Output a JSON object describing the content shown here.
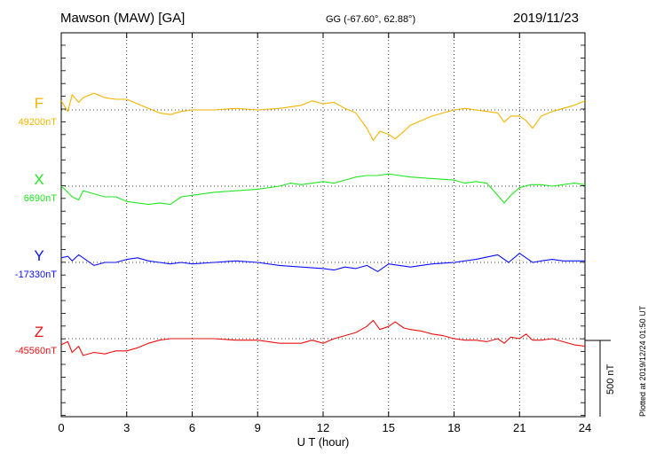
{
  "header": {
    "station": "Mawson (MAW)  [GA]",
    "coords": "GG (-67.60°,  62.88°)",
    "date": "2019/11/23"
  },
  "plotted_note": "Plotted at 2019/12/24 01:50 UT",
  "scale_bar_label": "500 nT",
  "chart_data": {
    "type": "line",
    "xlabel": "U T (hour)",
    "xlim": [
      0,
      24
    ],
    "xticks": [
      0,
      3,
      6,
      9,
      12,
      15,
      18,
      21,
      24
    ],
    "grid": true,
    "scale_bar_nT": 500,
    "series": [
      {
        "name": "F",
        "baseline_label": "49200nT",
        "baseline_nT": 49200,
        "color": "#f5b400",
        "points": [
          [
            0,
            49260
          ],
          [
            0.3,
            49190
          ],
          [
            0.5,
            49300
          ],
          [
            0.8,
            49250
          ],
          [
            1,
            49280
          ],
          [
            1.5,
            49310
          ],
          [
            2,
            49280
          ],
          [
            2.5,
            49270
          ],
          [
            3,
            49270
          ],
          [
            3.5,
            49240
          ],
          [
            4,
            49210
          ],
          [
            4.5,
            49180
          ],
          [
            5,
            49170
          ],
          [
            5.5,
            49190
          ],
          [
            6,
            49200
          ],
          [
            7,
            49200
          ],
          [
            8,
            49210
          ],
          [
            9,
            49200
          ],
          [
            10,
            49210
          ],
          [
            11,
            49230
          ],
          [
            11.5,
            49260
          ],
          [
            12,
            49240
          ],
          [
            12.5,
            49250
          ],
          [
            13,
            49210
          ],
          [
            13.5,
            49180
          ],
          [
            14,
            49080
          ],
          [
            14.3,
            49000
          ],
          [
            14.6,
            49060
          ],
          [
            15,
            49040
          ],
          [
            15.3,
            49010
          ],
          [
            15.7,
            49060
          ],
          [
            16,
            49100
          ],
          [
            17,
            49160
          ],
          [
            17.5,
            49180
          ],
          [
            18,
            49200
          ],
          [
            18.5,
            49210
          ],
          [
            19,
            49200
          ],
          [
            19.5,
            49190
          ],
          [
            20,
            49180
          ],
          [
            20.3,
            49120
          ],
          [
            20.6,
            49160
          ],
          [
            21,
            49160
          ],
          [
            21.3,
            49130
          ],
          [
            21.6,
            49080
          ],
          [
            22,
            49160
          ],
          [
            22.5,
            49190
          ],
          [
            23,
            49210
          ],
          [
            23.5,
            49230
          ],
          [
            24,
            49260
          ]
        ]
      },
      {
        "name": "X",
        "baseline_label": "6690nT",
        "baseline_nT": 6690,
        "color": "#22e622",
        "points": [
          [
            0,
            6690
          ],
          [
            0.3,
            6650
          ],
          [
            0.5,
            6620
          ],
          [
            0.8,
            6600
          ],
          [
            1,
            6660
          ],
          [
            1.5,
            6640
          ],
          [
            2,
            6620
          ],
          [
            2.5,
            6620
          ],
          [
            3,
            6590
          ],
          [
            3.5,
            6580
          ],
          [
            4,
            6570
          ],
          [
            4.5,
            6580
          ],
          [
            5,
            6570
          ],
          [
            5.5,
            6620
          ],
          [
            6,
            6630
          ],
          [
            6.5,
            6640
          ],
          [
            7,
            6650
          ],
          [
            8,
            6660
          ],
          [
            9,
            6670
          ],
          [
            10,
            6690
          ],
          [
            10.5,
            6710
          ],
          [
            11,
            6700
          ],
          [
            11.5,
            6710
          ],
          [
            12,
            6720
          ],
          [
            12.5,
            6710
          ],
          [
            13,
            6730
          ],
          [
            13.5,
            6750
          ],
          [
            14,
            6760
          ],
          [
            14.5,
            6760
          ],
          [
            15,
            6770
          ],
          [
            15.5,
            6760
          ],
          [
            16,
            6750
          ],
          [
            17,
            6740
          ],
          [
            18,
            6730
          ],
          [
            18.5,
            6710
          ],
          [
            19,
            6720
          ],
          [
            19.5,
            6710
          ],
          [
            20,
            6630
          ],
          [
            20.3,
            6580
          ],
          [
            20.6,
            6630
          ],
          [
            21,
            6680
          ],
          [
            21.5,
            6700
          ],
          [
            22,
            6700
          ],
          [
            22.5,
            6690
          ],
          [
            23,
            6700
          ],
          [
            23.5,
            6710
          ],
          [
            24,
            6700
          ]
        ]
      },
      {
        "name": "Y",
        "baseline_label": "-17330nT",
        "baseline_nT": -17330,
        "color": "#0a10ff",
        "points": [
          [
            0,
            -17300
          ],
          [
            0.3,
            -17290
          ],
          [
            0.5,
            -17320
          ],
          [
            0.8,
            -17280
          ],
          [
            1,
            -17300
          ],
          [
            1.5,
            -17350
          ],
          [
            2,
            -17330
          ],
          [
            2.5,
            -17330
          ],
          [
            3,
            -17310
          ],
          [
            3.5,
            -17300
          ],
          [
            4,
            -17320
          ],
          [
            4.5,
            -17330
          ],
          [
            5,
            -17340
          ],
          [
            5.5,
            -17330
          ],
          [
            6,
            -17340
          ],
          [
            7,
            -17330
          ],
          [
            8,
            -17320
          ],
          [
            9,
            -17330
          ],
          [
            10,
            -17350
          ],
          [
            11,
            -17360
          ],
          [
            12,
            -17370
          ],
          [
            12.5,
            -17380
          ],
          [
            13,
            -17360
          ],
          [
            13.5,
            -17370
          ],
          [
            14,
            -17350
          ],
          [
            14.5,
            -17390
          ],
          [
            15,
            -17340
          ],
          [
            15.5,
            -17350
          ],
          [
            16,
            -17360
          ],
          [
            17,
            -17340
          ],
          [
            18,
            -17330
          ],
          [
            19,
            -17310
          ],
          [
            20,
            -17280
          ],
          [
            20.5,
            -17330
          ],
          [
            21,
            -17270
          ],
          [
            21.3,
            -17300
          ],
          [
            21.6,
            -17330
          ],
          [
            22,
            -17320
          ],
          [
            22.5,
            -17310
          ],
          [
            23,
            -17320
          ],
          [
            24,
            -17320
          ]
        ]
      },
      {
        "name": "Z",
        "baseline_label": "-45560nT",
        "baseline_nT": -45560,
        "color": "#ee1111",
        "points": [
          [
            0,
            -45600
          ],
          [
            0.3,
            -45580
          ],
          [
            0.5,
            -45650
          ],
          [
            0.8,
            -45610
          ],
          [
            1,
            -45670
          ],
          [
            1.5,
            -45650
          ],
          [
            2,
            -45660
          ],
          [
            2.5,
            -45640
          ],
          [
            3,
            -45640
          ],
          [
            3.5,
            -45620
          ],
          [
            4,
            -45590
          ],
          [
            4.5,
            -45570
          ],
          [
            5,
            -45560
          ],
          [
            6,
            -45560
          ],
          [
            7,
            -45560
          ],
          [
            8,
            -45570
          ],
          [
            9,
            -45570
          ],
          [
            10,
            -45590
          ],
          [
            11,
            -45590
          ],
          [
            11.5,
            -45570
          ],
          [
            12,
            -45590
          ],
          [
            12.5,
            -45560
          ],
          [
            13,
            -45540
          ],
          [
            13.5,
            -45520
          ],
          [
            14,
            -45480
          ],
          [
            14.3,
            -45440
          ],
          [
            14.6,
            -45500
          ],
          [
            15,
            -45480
          ],
          [
            15.3,
            -45450
          ],
          [
            15.7,
            -45490
          ],
          [
            16,
            -45500
          ],
          [
            16.5,
            -45510
          ],
          [
            17,
            -45530
          ],
          [
            17.5,
            -45540
          ],
          [
            18,
            -45560
          ],
          [
            18.5,
            -45570
          ],
          [
            19,
            -45570
          ],
          [
            19.5,
            -45580
          ],
          [
            20,
            -45560
          ],
          [
            20.3,
            -45590
          ],
          [
            20.6,
            -45550
          ],
          [
            21,
            -45560
          ],
          [
            21.3,
            -45530
          ],
          [
            21.6,
            -45570
          ],
          [
            22,
            -45570
          ],
          [
            22.5,
            -45560
          ],
          [
            23,
            -45580
          ],
          [
            23.5,
            -45600
          ],
          [
            24,
            -45610
          ]
        ]
      }
    ]
  }
}
